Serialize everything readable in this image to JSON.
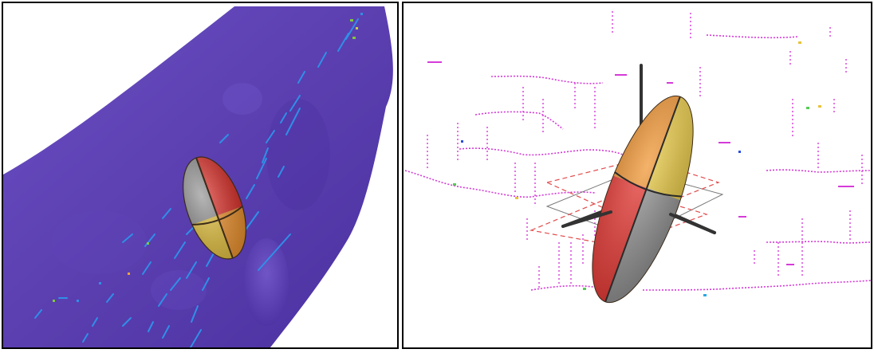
{
  "figure": {
    "panels": [
      {
        "id": "left",
        "view": "surface-with-ellipsoid",
        "colors": {
          "surface": "#5b3fb0",
          "surface_shadow": "#442c92",
          "fracture_lines": "#2f8fe8",
          "ellipsoid_red": "#e2302a",
          "ellipsoid_gray": "#8f8f8f",
          "ellipsoid_orange": "#f2942b",
          "ellipsoid_yellow": "#e7c33b",
          "ellipsoid_outline": "#3a2a1a"
        }
      },
      {
        "id": "right",
        "view": "ellipsoid-with-axes-and-planes",
        "colors": {
          "trace_lines": "#d53ad8",
          "trace_accent": "#55cc55",
          "axis_rods": "#333333",
          "plane_dashed": "#e24b4b",
          "plane_solid": "#777777",
          "ellipsoid_red": "#e8312c",
          "ellipsoid_gray": "#8f8f8f",
          "ellipsoid_orange": "#f0912a",
          "ellipsoid_yellow": "#e6c63c"
        }
      }
    ]
  }
}
